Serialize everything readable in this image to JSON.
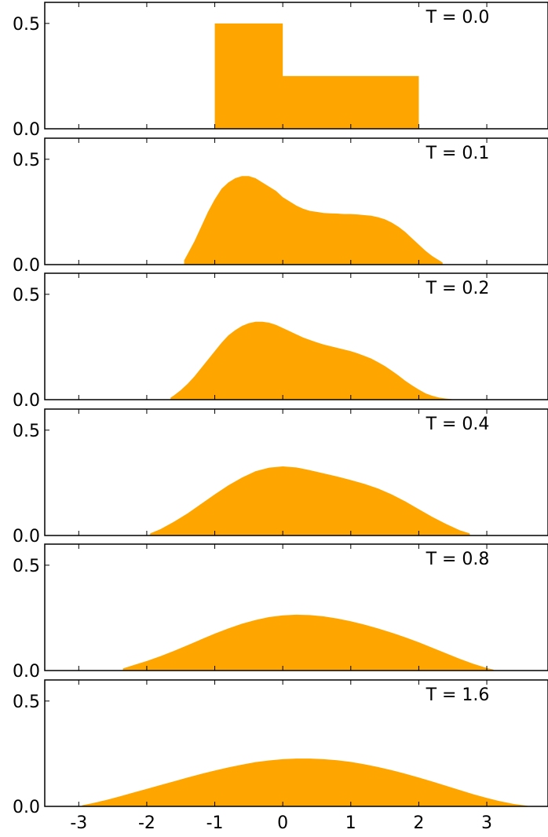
{
  "chart_data": {
    "type": "area",
    "layout": "stacked-panels",
    "fill_color": "#ffa500",
    "xlim": [
      -3.5,
      3.9
    ],
    "ylim": [
      0,
      0.6
    ],
    "x_ticks": [
      -3,
      -2,
      -1,
      0,
      1,
      2,
      3
    ],
    "x_tick_labels": [
      "-3",
      "-2",
      "-1",
      "0",
      "1",
      "2",
      "3"
    ],
    "y_ticks": [
      0.0,
      0.5
    ],
    "y_tick_labels": [
      "0.0",
      "0.5"
    ],
    "grid": false,
    "title": "",
    "xlabel": "",
    "ylabel": "",
    "panels": [
      {
        "label": "T = 0.0",
        "x": [
          -1.0,
          -1.0,
          0.0,
          0.0,
          2.0,
          2.0
        ],
        "y": [
          0.0,
          0.5,
          0.5,
          0.25,
          0.25,
          0.0
        ]
      },
      {
        "label": "T = 0.1",
        "x": [
          -1.45,
          -1.4,
          -1.3,
          -1.2,
          -1.1,
          -1.0,
          -0.9,
          -0.8,
          -0.7,
          -0.6,
          -0.5,
          -0.4,
          -0.3,
          -0.2,
          -0.1,
          0.0,
          0.1,
          0.2,
          0.3,
          0.4,
          0.5,
          0.6,
          0.7,
          0.8,
          0.9,
          1.0,
          1.1,
          1.2,
          1.3,
          1.4,
          1.5,
          1.6,
          1.7,
          1.8,
          1.9,
          2.0,
          2.1,
          2.2,
          2.3,
          2.35
        ],
        "y": [
          0.02,
          0.05,
          0.11,
          0.18,
          0.25,
          0.31,
          0.36,
          0.39,
          0.41,
          0.42,
          0.42,
          0.41,
          0.39,
          0.37,
          0.35,
          0.32,
          0.3,
          0.28,
          0.265,
          0.255,
          0.25,
          0.245,
          0.243,
          0.242,
          0.24,
          0.24,
          0.238,
          0.235,
          0.232,
          0.225,
          0.215,
          0.2,
          0.18,
          0.155,
          0.125,
          0.095,
          0.065,
          0.04,
          0.02,
          0.01
        ]
      },
      {
        "label": "T = 0.2",
        "x": [
          -1.65,
          -1.6,
          -1.5,
          -1.4,
          -1.3,
          -1.2,
          -1.1,
          -1.0,
          -0.9,
          -0.8,
          -0.7,
          -0.6,
          -0.5,
          -0.4,
          -0.3,
          -0.2,
          -0.1,
          0.0,
          0.1,
          0.2,
          0.3,
          0.4,
          0.5,
          0.6,
          0.7,
          0.8,
          0.9,
          1.0,
          1.1,
          1.2,
          1.3,
          1.4,
          1.5,
          1.6,
          1.7,
          1.8,
          1.9,
          2.0,
          2.1,
          2.2,
          2.3,
          2.4,
          2.5
        ],
        "y": [
          0.01,
          0.02,
          0.045,
          0.075,
          0.11,
          0.15,
          0.19,
          0.23,
          0.27,
          0.305,
          0.33,
          0.35,
          0.363,
          0.37,
          0.37,
          0.365,
          0.355,
          0.34,
          0.325,
          0.31,
          0.295,
          0.283,
          0.272,
          0.262,
          0.254,
          0.246,
          0.238,
          0.23,
          0.22,
          0.208,
          0.195,
          0.178,
          0.16,
          0.138,
          0.115,
          0.09,
          0.068,
          0.048,
          0.03,
          0.018,
          0.01,
          0.005,
          0.002
        ]
      },
      {
        "label": "T = 0.4",
        "x": [
          -1.95,
          -1.8,
          -1.6,
          -1.4,
          -1.2,
          -1.0,
          -0.8,
          -0.6,
          -0.4,
          -0.2,
          0.0,
          0.2,
          0.4,
          0.6,
          0.8,
          1.0,
          1.2,
          1.4,
          1.6,
          1.8,
          2.0,
          2.2,
          2.4,
          2.6,
          2.75
        ],
        "y": [
          0.01,
          0.03,
          0.065,
          0.105,
          0.15,
          0.195,
          0.238,
          0.275,
          0.305,
          0.322,
          0.328,
          0.323,
          0.31,
          0.295,
          0.28,
          0.263,
          0.245,
          0.223,
          0.195,
          0.162,
          0.125,
          0.088,
          0.055,
          0.025,
          0.01
        ]
      },
      {
        "label": "T = 0.8",
        "x": [
          -2.35,
          -2.2,
          -2.0,
          -1.8,
          -1.6,
          -1.4,
          -1.2,
          -1.0,
          -0.8,
          -0.6,
          -0.4,
          -0.2,
          0.0,
          0.2,
          0.4,
          0.6,
          0.8,
          1.0,
          1.2,
          1.4,
          1.6,
          1.8,
          2.0,
          2.2,
          2.4,
          2.6,
          2.8,
          3.0,
          3.1
        ],
        "y": [
          0.01,
          0.025,
          0.045,
          0.068,
          0.093,
          0.12,
          0.148,
          0.175,
          0.2,
          0.222,
          0.24,
          0.254,
          0.262,
          0.265,
          0.263,
          0.257,
          0.247,
          0.234,
          0.218,
          0.2,
          0.18,
          0.158,
          0.134,
          0.108,
          0.082,
          0.056,
          0.032,
          0.012,
          0.004
        ]
      },
      {
        "label": "T = 1.6",
        "x": [
          -2.95,
          -2.8,
          -2.6,
          -2.4,
          -2.2,
          -2.0,
          -1.8,
          -1.6,
          -1.4,
          -1.2,
          -1.0,
          -0.8,
          -0.6,
          -0.4,
          -0.2,
          0.0,
          0.2,
          0.4,
          0.6,
          0.8,
          1.0,
          1.2,
          1.4,
          1.6,
          1.8,
          2.0,
          2.2,
          2.4,
          2.6,
          2.8,
          3.0,
          3.2,
          3.4,
          3.6
        ],
        "y": [
          0.005,
          0.015,
          0.03,
          0.047,
          0.065,
          0.083,
          0.101,
          0.119,
          0.137,
          0.154,
          0.17,
          0.185,
          0.198,
          0.21,
          0.218,
          0.224,
          0.227,
          0.227,
          0.224,
          0.219,
          0.211,
          0.2,
          0.187,
          0.172,
          0.155,
          0.137,
          0.118,
          0.098,
          0.078,
          0.058,
          0.04,
          0.024,
          0.011,
          0.003
        ]
      }
    ]
  }
}
